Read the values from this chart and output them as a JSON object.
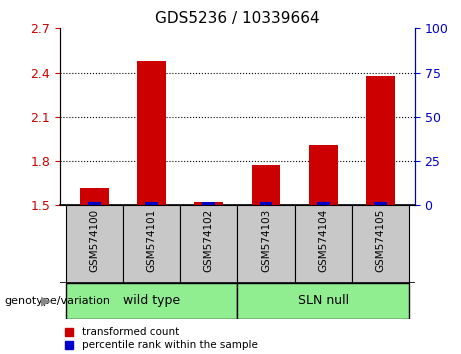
{
  "title": "GDS5236 / 10339664",
  "categories": [
    "GSM574100",
    "GSM574101",
    "GSM574102",
    "GSM574103",
    "GSM574104",
    "GSM574105"
  ],
  "red_values": [
    1.62,
    2.48,
    1.52,
    1.77,
    1.91,
    2.38
  ],
  "blue_pct": [
    2,
    2,
    2,
    2,
    2,
    2
  ],
  "ylim_left": [
    1.5,
    2.7
  ],
  "ylim_right": [
    0,
    100
  ],
  "yticks_left": [
    1.5,
    1.8,
    2.1,
    2.4,
    2.7
  ],
  "yticks_right": [
    0,
    25,
    50,
    75,
    100
  ],
  "group_configs": [
    {
      "indices": [
        0,
        1,
        2
      ],
      "label": "wild type",
      "color": "#90ee90"
    },
    {
      "indices": [
        3,
        4,
        5
      ],
      "label": "SLN null",
      "color": "#90ee90"
    }
  ],
  "group_label_prefix": "genotype/variation",
  "legend_red": "transformed count",
  "legend_blue": "percentile rank within the sample",
  "bar_width": 0.5,
  "red_color": "#cc0000",
  "blue_color": "#0000cc",
  "background_color": "#ffffff",
  "tick_area_bg": "#c8c8c8",
  "baseline": 1.5,
  "title_fontsize": 11,
  "tick_fontsize": 9,
  "label_fontsize": 7.5,
  "legend_fontsize": 7.5,
  "group_fontsize": 9
}
